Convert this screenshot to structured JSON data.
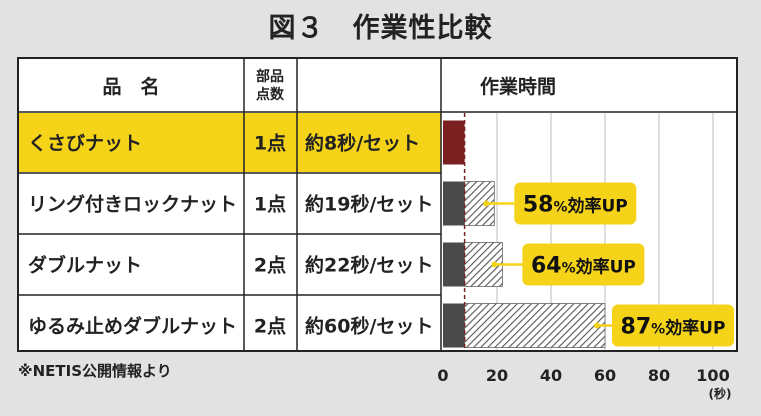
{
  "title": "図３　作業性比較",
  "headers": {
    "name": "品　名",
    "parts": [
      "部品",
      "点数"
    ],
    "time": "作業時間"
  },
  "note": "※NETIS公開情報より",
  "colors": {
    "highlight_row": "#f5d319",
    "base_bar": "#7a2020",
    "dark_bar": "#4a4a4a",
    "callout": "#f5d319"
  },
  "chart_data": {
    "type": "bar",
    "orientation": "horizontal",
    "unit": "(秒)",
    "xlim": [
      0,
      100
    ],
    "xticks": [
      0,
      20,
      40,
      60,
      80,
      100
    ],
    "baseline_value": 8,
    "rows": [
      {
        "name": "くさびナット",
        "parts": "1点",
        "time_label": "約8秒/セット",
        "value": 8,
        "improvement_num": "",
        "improvement_pct": "",
        "improvement_text": ""
      },
      {
        "name": "リング付きロックナット",
        "parts": "1点",
        "time_label": "約19秒/セット",
        "value": 19,
        "improvement_num": "58",
        "improvement_pct": "%",
        "improvement_text": "効率UP"
      },
      {
        "name": "ダブルナット",
        "parts": "2点",
        "time_label": "約22秒/セット",
        "value": 22,
        "improvement_num": "64",
        "improvement_pct": "%",
        "improvement_text": "効率UP"
      },
      {
        "name": "ゆるみ止めダブルナット",
        "parts": "2点",
        "time_label": "約60秒/セット",
        "value": 60,
        "improvement_num": "87",
        "improvement_pct": "%",
        "improvement_text": "効率UP"
      }
    ]
  }
}
